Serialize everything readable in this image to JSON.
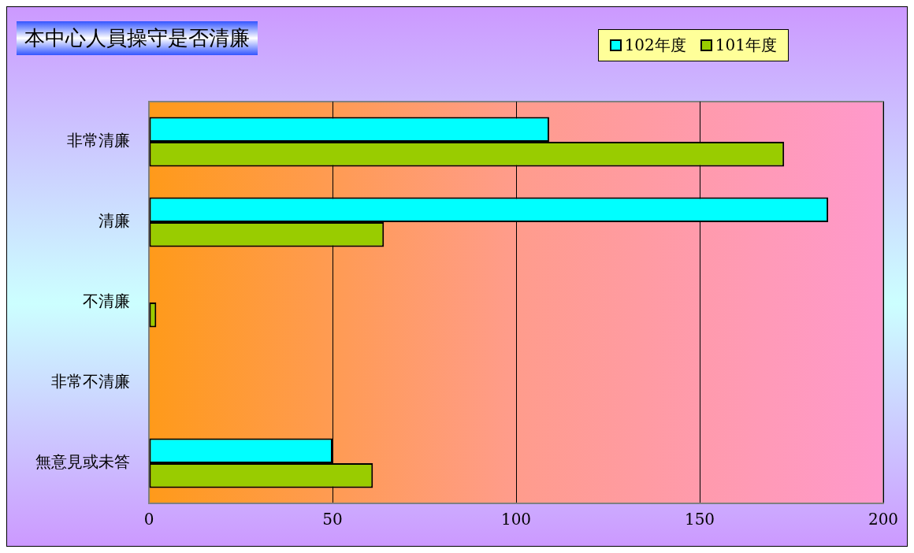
{
  "chart_data": {
    "type": "bar",
    "orientation": "horizontal",
    "title": "本中心人員操守是否清廉",
    "categories": [
      "非常清廉",
      "清廉",
      "不清廉",
      "非常不清廉",
      "無意見或未答"
    ],
    "series": [
      {
        "name": "102年度",
        "color": "#00ffff",
        "values": [
          109,
          185,
          0,
          0,
          50
        ]
      },
      {
        "name": "101年度",
        "color": "#99cc00",
        "values": [
          173,
          64,
          2,
          0,
          61
        ]
      }
    ],
    "xlim": [
      0,
      200
    ],
    "xticks": [
      0,
      50,
      100,
      150,
      200
    ],
    "grid": "x",
    "legend": "top right"
  }
}
